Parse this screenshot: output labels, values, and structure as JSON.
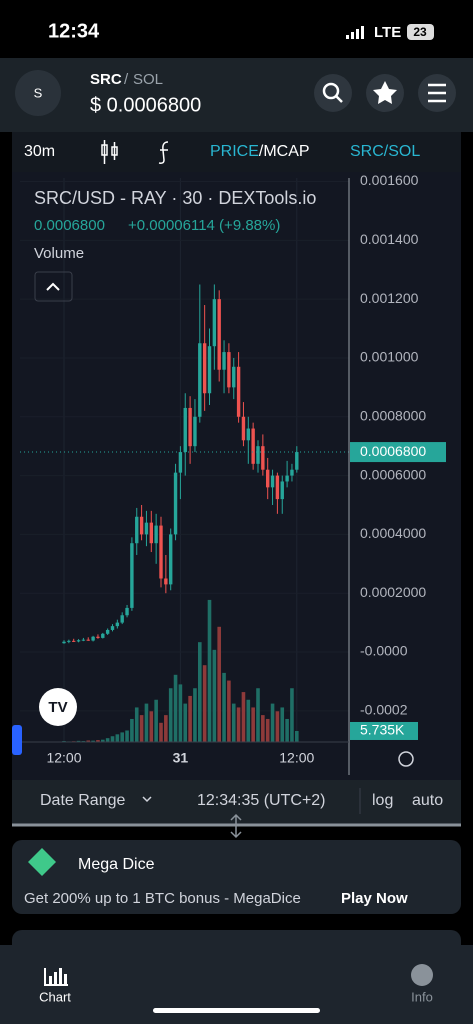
{
  "status_bar": {
    "time": "12:34",
    "network": "LTE",
    "battery": "23"
  },
  "header": {
    "icon": "S",
    "base": "SRC",
    "sep": "/",
    "quote": "SOL",
    "price": "$ 0.0006800"
  },
  "toolbar": {
    "interval": "30m",
    "mode_active": "PRICE",
    "mode_rest": "/MCAP",
    "pair": "SRC/SOL"
  },
  "chart": {
    "title": "SRC/USD - RAY · 30 · DEXTools.io",
    "last": "0.0006800",
    "change": "+0.00006114 (+9.88%)",
    "volume_title": "Volume",
    "ylim": [
      -0.000306,
      0.001612
    ],
    "yticks": [
      {
        "value": 0.0016,
        "label": "0.001600"
      },
      {
        "value": 0.0014,
        "label": "0.001400"
      },
      {
        "value": 0.0012,
        "label": "0.001200"
      },
      {
        "value": 0.001,
        "label": "0.001000"
      },
      {
        "value": 0.0008,
        "label": "0.0008000"
      },
      {
        "value": 0.0006,
        "label": "0.0006000"
      },
      {
        "value": 0.0004,
        "label": "0.0004000"
      },
      {
        "value": 0.0002,
        "label": "0.0002000"
      },
      {
        "value": 0,
        "label": "-0.0000"
      },
      {
        "value": -0.0002,
        "label": "-0.0002"
      }
    ],
    "current_price": {
      "value": 0.00068,
      "label": "0.0006800"
    },
    "volume_last_label": "5.735K",
    "xticks": [
      {
        "index": 0,
        "label": "12:00"
      },
      {
        "index": 24,
        "label": "31"
      },
      {
        "index": 48,
        "label": "12:00"
      }
    ],
    "candles": [
      [
        3e-05,
        4e-05,
        2.8e-05,
        3.5e-05
      ],
      [
        3.5e-05,
        4.2e-05,
        3e-05,
        3.8e-05
      ],
      [
        3.8e-05,
        4.5e-05,
        3.4e-05,
        3.6e-05
      ],
      [
        3.6e-05,
        4.4e-05,
        3.3e-05,
        4e-05
      ],
      [
        4e-05,
        4.8e-05,
        3.7e-05,
        4.2e-05
      ],
      [
        4.2e-05,
        5e-05,
        3.8e-05,
        3.9e-05
      ],
      [
        3.9e-05,
        5.5e-05,
        3.6e-05,
        5.2e-05
      ],
      [
        5.2e-05,
        6e-05,
        4.5e-05,
        4.8e-05
      ],
      [
        4.8e-05,
        6.5e-05,
        4.6e-05,
        6.2e-05
      ],
      [
        6.2e-05,
        8e-05,
        5.8e-05,
        7.5e-05
      ],
      [
        7.5e-05,
        9.5e-05,
        7e-05,
        8.8e-05
      ],
      [
        8.8e-05,
        0.00011,
        8e-05,
        0.0001
      ],
      [
        0.0001,
        0.000135,
        9.5e-05,
        0.000125
      ],
      [
        0.000125,
        0.00016,
        0.000118,
        0.00015
      ],
      [
        0.00015,
        0.00039,
        0.00014,
        0.00037
      ],
      [
        0.00037,
        0.00049,
        0.00033,
        0.00046
      ],
      [
        0.00046,
        0.0005,
        0.00038,
        0.0004
      ],
      [
        0.0004,
        0.00048,
        0.00036,
        0.00044
      ],
      [
        0.00044,
        0.00048,
        0.00034,
        0.00037
      ],
      [
        0.00037,
        0.00047,
        0.0003,
        0.00043
      ],
      [
        0.00043,
        0.00046,
        0.00022,
        0.00025
      ],
      [
        0.00025,
        0.00033,
        0.0002,
        0.00023
      ],
      [
        0.00023,
        0.00042,
        0.00021,
        0.0004
      ],
      [
        0.0004,
        0.00064,
        0.00038,
        0.00061
      ],
      [
        0.00061,
        0.0007,
        0.00052,
        0.00068
      ],
      [
        0.00068,
        0.00088,
        0.0006,
        0.00083
      ],
      [
        0.00083,
        0.00087,
        0.00064,
        0.0007
      ],
      [
        0.0007,
        0.00086,
        0.00068,
        0.0008
      ],
      [
        0.0008,
        0.00125,
        0.00078,
        0.00105
      ],
      [
        0.00105,
        0.00118,
        0.00082,
        0.00088
      ],
      [
        0.00088,
        0.0011,
        0.00084,
        0.00104
      ],
      [
        0.00104,
        0.00125,
        0.00096,
        0.0012
      ],
      [
        0.0012,
        0.00123,
        0.00092,
        0.00096
      ],
      [
        0.00096,
        0.00106,
        0.00088,
        0.00102
      ],
      [
        0.00102,
        0.00105,
        0.00088,
        0.0009
      ],
      [
        0.0009,
        0.001,
        0.00086,
        0.00097
      ],
      [
        0.00097,
        0.00102,
        0.00078,
        0.0008
      ],
      [
        0.0008,
        0.00085,
        0.0007,
        0.00072
      ],
      [
        0.00072,
        0.0008,
        0.00064,
        0.00076
      ],
      [
        0.00076,
        0.00078,
        0.00062,
        0.00064
      ],
      [
        0.00064,
        0.00072,
        0.00061,
        0.0007
      ],
      [
        0.0007,
        0.00074,
        0.0006,
        0.00062
      ],
      [
        0.00062,
        0.00066,
        0.00052,
        0.00056
      ],
      [
        0.00056,
        0.00062,
        0.0005,
        0.0006
      ],
      [
        0.0006,
        0.00061,
        0.00047,
        0.00052
      ],
      [
        0.00052,
        0.0006,
        0.00047,
        0.00058
      ],
      [
        0.00058,
        0.00065,
        0.00056,
        0.0006
      ],
      [
        0.0006,
        0.00064,
        0.00058,
        0.00062
      ],
      [
        0.00062,
        0.0007,
        0.00061,
        0.00068
      ]
    ],
    "volumes": [
      0.5,
      0.3,
      0.4,
      0.6,
      0.5,
      0.8,
      0.7,
      1,
      1.2,
      2,
      3,
      4,
      5,
      6,
      12,
      18,
      14,
      20,
      16,
      22,
      10,
      14,
      28,
      35,
      30,
      20,
      24,
      28,
      52,
      40,
      74,
      48,
      60,
      36,
      32,
      20,
      18,
      26,
      22,
      18,
      28,
      14,
      12,
      20,
      16,
      18,
      12,
      28,
      5.735
    ]
  },
  "footer": {
    "date_range": "Date Range",
    "time": "12:34:35 (UTC+2)",
    "log": "log",
    "auto": "auto"
  },
  "ad": {
    "title": "Mega Dice",
    "text": "Get 200% up to 1 BTC bonus - MegaDice",
    "cta": "Play Now"
  },
  "nav": {
    "chart": "Chart",
    "info": "Info"
  }
}
